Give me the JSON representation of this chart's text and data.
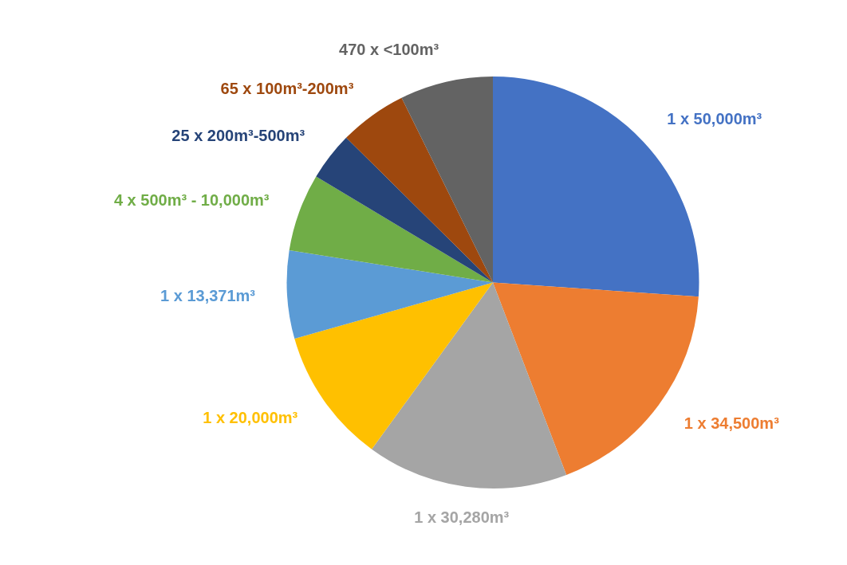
{
  "chart_data": {
    "type": "pie",
    "categories": [
      "1 x 50,000m³",
      "1 x 34,500m³",
      "1 x 30,280m³",
      "1 x 20,000m³",
      "1 x 13,371m³",
      "4 x 500m³ - 10,000m³",
      "25 x 200m³-500m³",
      "65 x 100m³-200m³",
      "470 x <100m³"
    ],
    "values": [
      26.1,
      18.1,
      15.8,
      10.6,
      6.9,
      6.1,
      3.8,
      5.3,
      7.3
    ],
    "colors": [
      "#4472c4",
      "#ed7d31",
      "#a5a5a5",
      "#ffc000",
      "#5b9bd5",
      "#70ad47",
      "#264478",
      "#9e480e",
      "#636363"
    ],
    "legend": false
  }
}
